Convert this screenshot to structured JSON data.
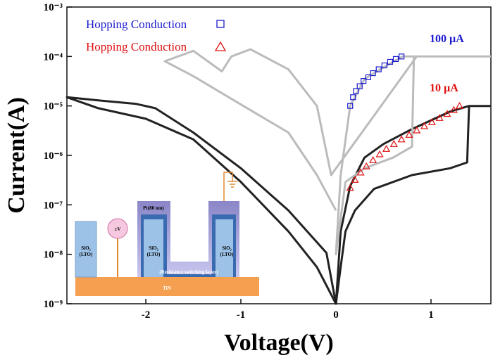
{
  "chart_data": {
    "type": "line",
    "x_label": "Voltage(V)",
    "y_label": "Current(A)",
    "xlim": [
      -2.83,
      1.63
    ],
    "ylim": [
      1e-09,
      0.001
    ],
    "log_y": true,
    "xticks": [
      -2,
      -1,
      0,
      1
    ],
    "yticks": [
      {
        "value": 1e-09,
        "label": "10⁻⁹"
      },
      {
        "value": 1e-08,
        "label": "10⁻⁸"
      },
      {
        "value": 1e-07,
        "label": "10⁻⁷"
      },
      {
        "value": 1e-06,
        "label": "10⁻⁶"
      },
      {
        "value": 1e-05,
        "label": "10⁻⁵"
      },
      {
        "value": 0.0001,
        "label": "10⁻⁴"
      },
      {
        "value": 0.001,
        "label": "10⁻³"
      }
    ],
    "annotations": [
      "100 µA",
      "10 µA"
    ],
    "series": [
      {
        "color": "#222222",
        "style": "line",
        "x": [
          1.63,
          1.4,
          1.2,
          0.8,
          0.5,
          0.3,
          0.15,
          0.05,
          0,
          -0.1,
          -0.5,
          -1,
          -1.5,
          -1.9,
          -2.1,
          -2.5,
          -2.83,
          -2.5,
          -2,
          -1.5,
          -1,
          -0.5,
          -0.2,
          0,
          0.05,
          0.1,
          0.2,
          0.4,
          0.8,
          1.2,
          1.38,
          1.4
        ],
        "values": [
          1e-05,
          1e-05,
          7.7e-06,
          3.4e-06,
          1.7e-06,
          9e-07,
          2.4e-07,
          2.9e-08,
          1e-09,
          1.07e-08,
          7.7e-08,
          5.5e-07,
          2.9e-06,
          9e-06,
          1.1e-05,
          1.3e-05,
          1.5e-05,
          9e-06,
          5.5e-06,
          2.1e-06,
          2.9e-07,
          2.9e-08,
          5.5e-09,
          1e-09,
          5.5e-09,
          2.9e-08,
          7.7e-08,
          2.1e-07,
          4e-07,
          5.5e-07,
          7.2e-07,
          1e-05
        ]
      },
      {
        "color": "#bbbbbb",
        "style": "line",
        "x": [
          1.63,
          0.82,
          0.8,
          0.6,
          0.3,
          0.1,
          0,
          0.05,
          0.15,
          0.3,
          0.5,
          0.7,
          0.85,
          -0.05,
          -0.2,
          -0.5,
          -0.9,
          -1.1,
          -1.2,
          -1.5,
          -1.8,
          -1.5,
          -1,
          -0.5,
          -0.2,
          0
        ],
        "values": [
          0.0001,
          0.0001,
          1.5e-06,
          9e-07,
          5.5e-07,
          2.9e-07,
          1e-08,
          4e-07,
          1e-05,
          3.5e-05,
          6e-05,
          0.0001,
          0.0001,
          4e-07,
          1e-05,
          5.5e-05,
          0.00014,
          0.0001,
          5e-05,
          0.00013,
          8e-05,
          4e-05,
          1.07e-05,
          2.9e-06,
          4e-07,
          7.7e-08
        ]
      },
      {
        "name": "Hopping Conduction",
        "color": "#1a1ad0",
        "style": "square",
        "x": [
          0.15,
          0.18,
          0.21,
          0.25,
          0.29,
          0.34,
          0.39,
          0.45,
          0.51,
          0.57,
          0.63,
          0.69
        ],
        "values": [
          1e-05,
          1.5e-05,
          2e-05,
          2.5e-05,
          3.2e-05,
          3.8e-05,
          4.6e-05,
          5.5e-05,
          6.6e-05,
          7.8e-05,
          8.9e-05,
          0.0001
        ]
      },
      {
        "name": "Hopping Conduction",
        "color": "#e01010",
        "style": "triangle",
        "x": [
          0.15,
          0.2,
          0.26,
          0.32,
          0.39,
          0.46,
          0.53,
          0.61,
          0.69,
          0.77,
          0.85,
          0.93,
          1.01,
          1.09,
          1.17,
          1.24,
          1.3
        ],
        "values": [
          2.2e-07,
          3.2e-07,
          4.5e-07,
          6e-07,
          8e-07,
          1.05e-06,
          1.35e-06,
          1.7e-06,
          2.1e-06,
          2.6e-06,
          3.2e-06,
          3.9e-06,
          4.7e-06,
          5.7e-06,
          6.9e-06,
          8.3e-06,
          1e-05
        ]
      }
    ]
  },
  "inset": {
    "sio2": "SiO₂",
    "lto": "(LTO)",
    "voltage": "±V",
    "pt": "Pt(80 nm)",
    "layer": "(Resistance switching layer)",
    "tin": "TiN"
  }
}
